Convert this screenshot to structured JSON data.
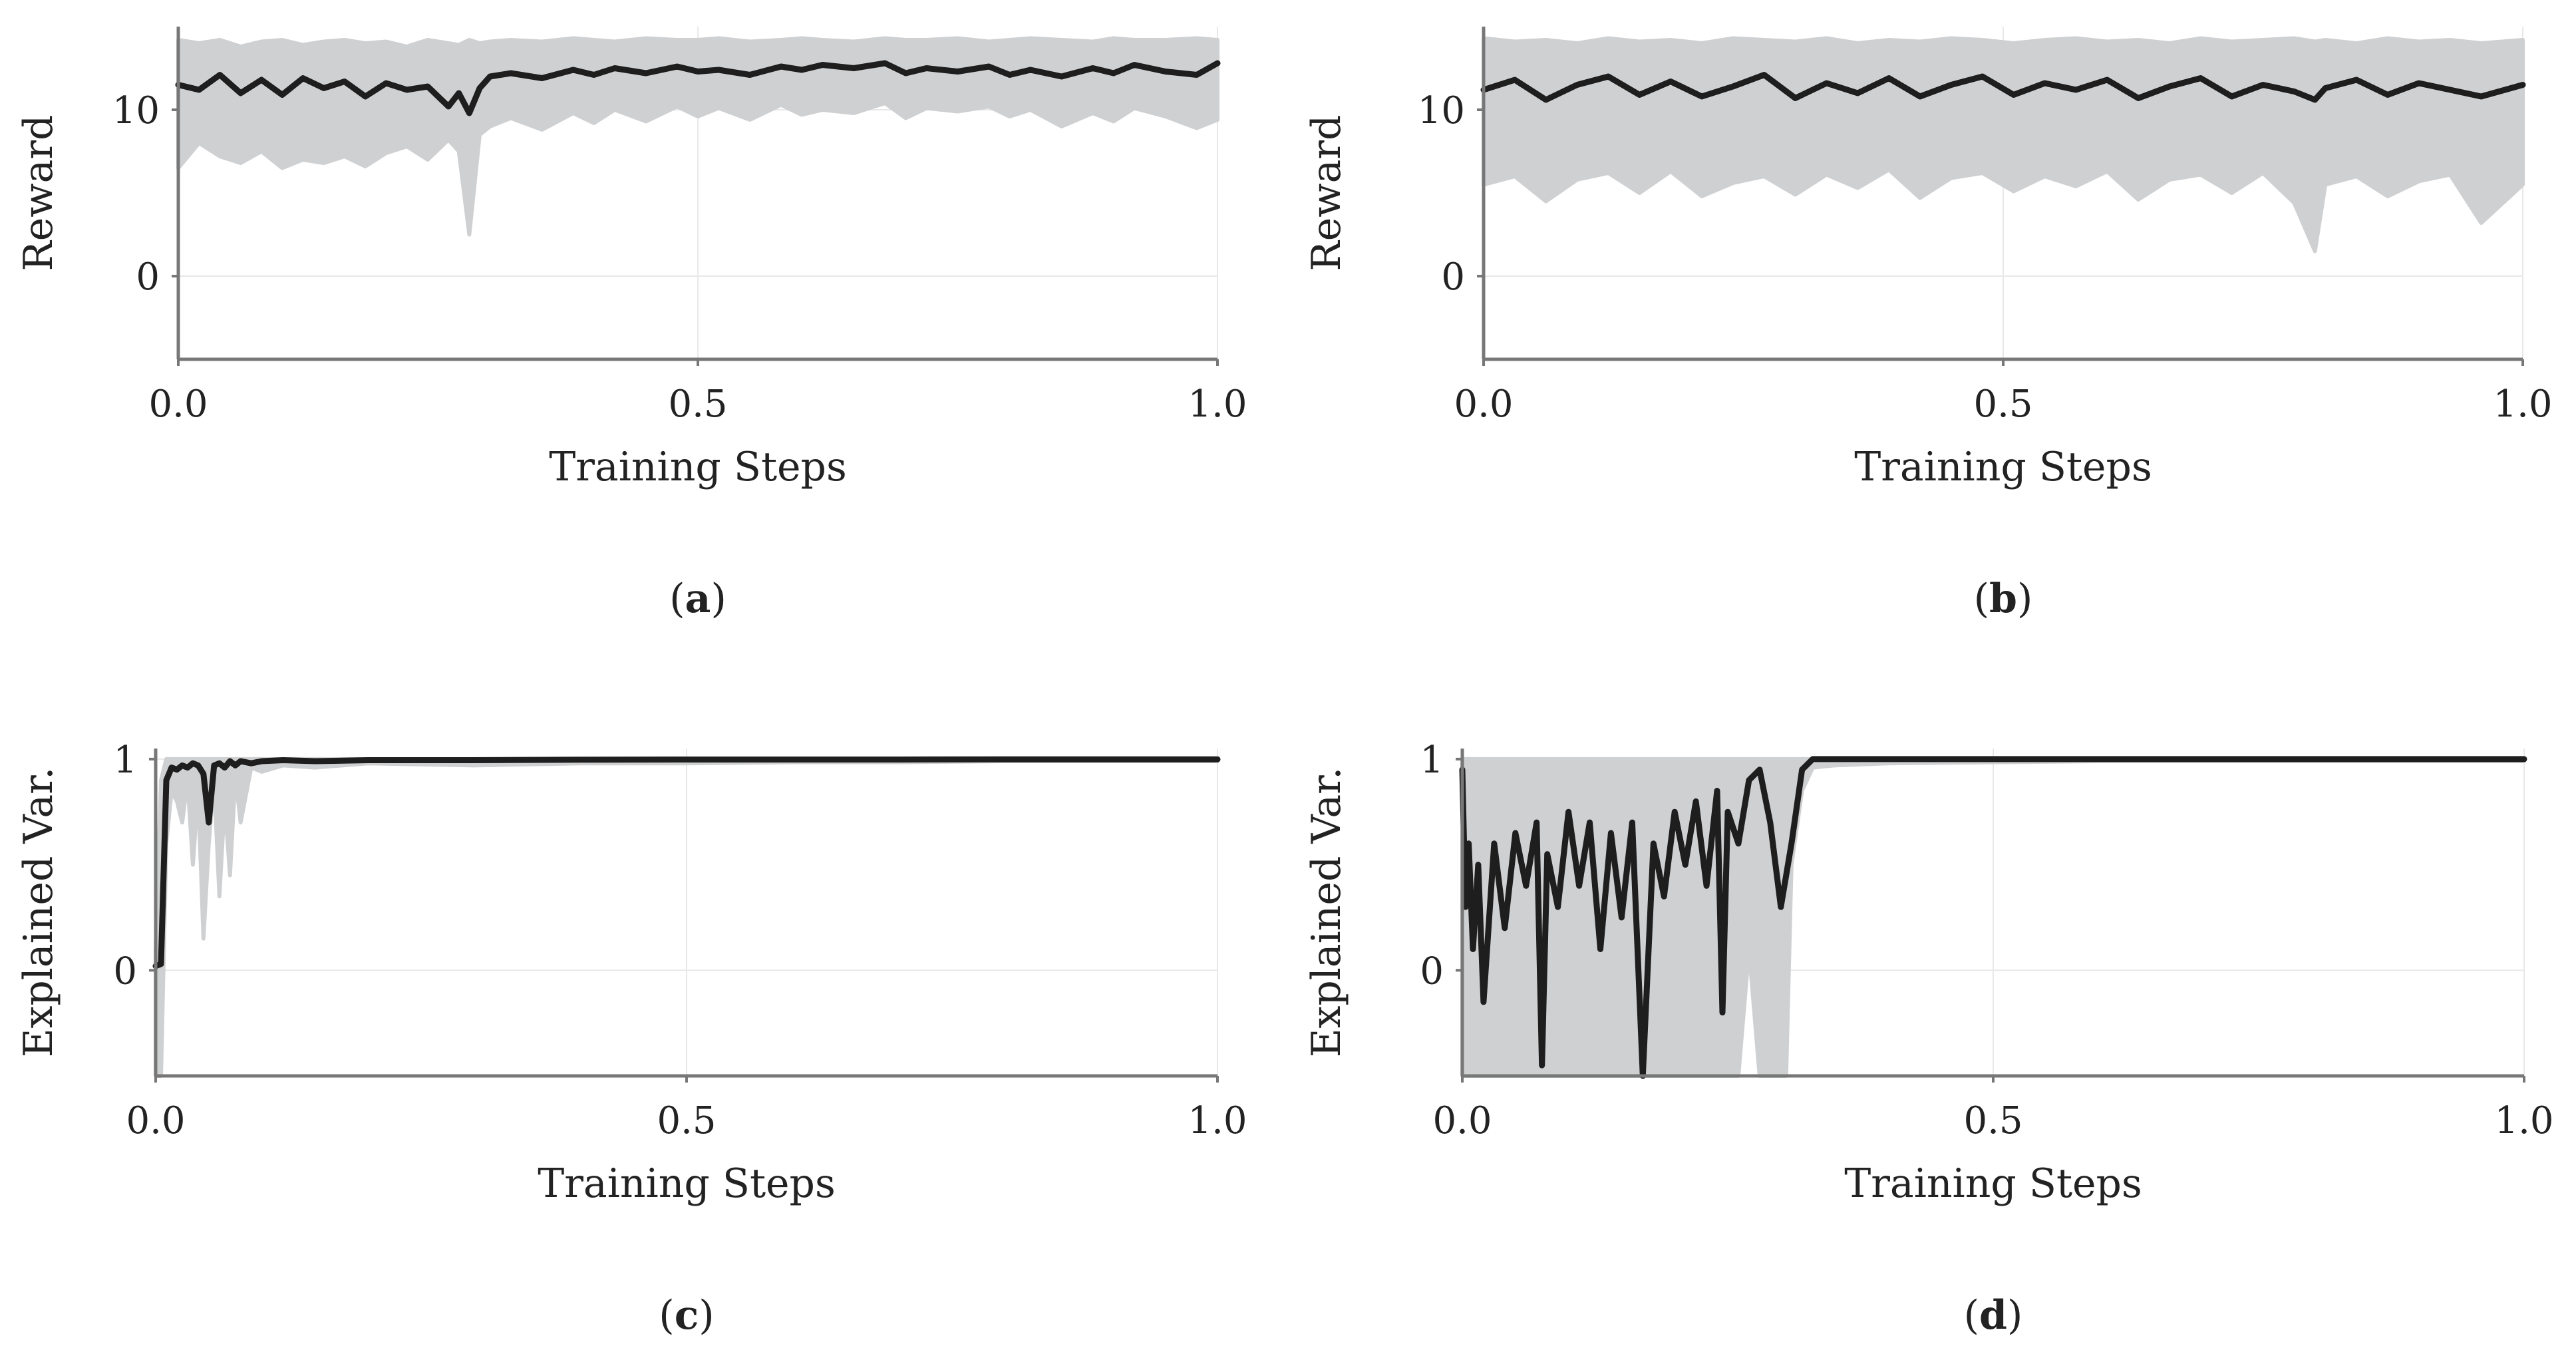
{
  "chart_data": [
    {
      "id": "a",
      "type": "line",
      "caption": "a",
      "xlabel": "Training Steps",
      "ylabel": "Reward",
      "xlim": [
        0,
        1
      ],
      "ylim": [
        -5,
        15
      ],
      "xticks": [
        0.0,
        0.5,
        1.0
      ],
      "xtick_labels": [
        "0.0",
        "0.5",
        "1.0"
      ],
      "yticks": [
        0,
        10
      ],
      "ytick_labels": [
        "0",
        "10"
      ],
      "grid": true,
      "legend": "none",
      "colors": {
        "mean": "#1e1e1e",
        "band": "#cfd0d2"
      },
      "series": [
        {
          "role": "band",
          "x": [
            0.0,
            0.02,
            0.04,
            0.06,
            0.08,
            0.1,
            0.12,
            0.14,
            0.16,
            0.18,
            0.2,
            0.22,
            0.24,
            0.26,
            0.27,
            0.28,
            0.29,
            0.3,
            0.32,
            0.35,
            0.38,
            0.4,
            0.42,
            0.45,
            0.48,
            0.5,
            0.52,
            0.55,
            0.58,
            0.6,
            0.62,
            0.65,
            0.68,
            0.7,
            0.72,
            0.75,
            0.78,
            0.8,
            0.82,
            0.85,
            0.88,
            0.9,
            0.92,
            0.95,
            0.98,
            1.0
          ],
          "upper": [
            14.2,
            14.0,
            14.2,
            13.8,
            14.1,
            14.2,
            13.9,
            14.1,
            14.2,
            14.0,
            14.1,
            13.8,
            14.2,
            14.0,
            13.9,
            14.2,
            14.0,
            14.1,
            14.2,
            14.1,
            14.3,
            14.2,
            14.1,
            14.3,
            14.2,
            14.2,
            14.3,
            14.1,
            14.2,
            14.3,
            14.2,
            14.1,
            14.3,
            14.2,
            14.2,
            14.3,
            14.1,
            14.2,
            14.3,
            14.2,
            14.1,
            14.3,
            14.2,
            14.2,
            14.3,
            14.2
          ],
          "lower": [
            6.5,
            8.0,
            7.2,
            6.8,
            7.5,
            6.5,
            7.0,
            6.8,
            7.2,
            6.6,
            7.4,
            7.8,
            7.0,
            8.2,
            7.5,
            2.5,
            8.5,
            9.0,
            9.5,
            8.8,
            9.8,
            9.2,
            10.0,
            9.3,
            10.2,
            9.6,
            10.1,
            9.4,
            10.3,
            9.7,
            10.0,
            9.8,
            10.4,
            9.5,
            10.1,
            9.9,
            10.2,
            9.6,
            10.0,
            9.0,
            9.8,
            9.3,
            10.1,
            9.6,
            8.9,
            9.4
          ]
        },
        {
          "role": "mean",
          "x": [
            0.0,
            0.02,
            0.04,
            0.06,
            0.08,
            0.1,
            0.12,
            0.14,
            0.16,
            0.18,
            0.2,
            0.22,
            0.24,
            0.26,
            0.27,
            0.28,
            0.29,
            0.3,
            0.32,
            0.35,
            0.38,
            0.4,
            0.42,
            0.45,
            0.48,
            0.5,
            0.52,
            0.55,
            0.58,
            0.6,
            0.62,
            0.65,
            0.68,
            0.7,
            0.72,
            0.75,
            0.78,
            0.8,
            0.82,
            0.85,
            0.88,
            0.9,
            0.92,
            0.95,
            0.98,
            1.0
          ],
          "values": [
            11.5,
            11.2,
            12.1,
            11.0,
            11.8,
            10.9,
            11.9,
            11.3,
            11.7,
            10.8,
            11.6,
            11.2,
            11.4,
            10.2,
            11.0,
            9.8,
            11.3,
            12.0,
            12.2,
            11.9,
            12.4,
            12.1,
            12.5,
            12.2,
            12.6,
            12.3,
            12.4,
            12.1,
            12.6,
            12.4,
            12.7,
            12.5,
            12.8,
            12.2,
            12.5,
            12.3,
            12.6,
            12.1,
            12.4,
            12.0,
            12.5,
            12.2,
            12.7,
            12.3,
            12.1,
            12.8
          ]
        }
      ]
    },
    {
      "id": "b",
      "type": "line",
      "caption": "b",
      "xlabel": "Training Steps",
      "ylabel": "Reward",
      "xlim": [
        0,
        1
      ],
      "ylim": [
        -5,
        15
      ],
      "xticks": [
        0.0,
        0.5,
        1.0
      ],
      "xtick_labels": [
        "0.0",
        "0.5",
        "1.0"
      ],
      "yticks": [
        0,
        10
      ],
      "ytick_labels": [
        "0",
        "10"
      ],
      "grid": true,
      "legend": "none",
      "colors": {
        "mean": "#1e1e1e",
        "band": "#cfd0d2"
      },
      "series": [
        {
          "role": "band",
          "x": [
            0.0,
            0.03,
            0.06,
            0.09,
            0.12,
            0.15,
            0.18,
            0.21,
            0.24,
            0.27,
            0.3,
            0.33,
            0.36,
            0.39,
            0.42,
            0.45,
            0.48,
            0.51,
            0.54,
            0.57,
            0.6,
            0.63,
            0.66,
            0.69,
            0.72,
            0.75,
            0.78,
            0.8,
            0.81,
            0.84,
            0.87,
            0.9,
            0.93,
            0.96,
            1.0
          ],
          "upper": [
            14.3,
            14.1,
            14.2,
            14.0,
            14.3,
            14.1,
            14.2,
            14.0,
            14.3,
            14.2,
            14.1,
            14.3,
            14.0,
            14.2,
            14.1,
            14.3,
            14.2,
            14.0,
            14.2,
            14.3,
            14.1,
            14.2,
            14.0,
            14.3,
            14.1,
            14.2,
            14.3,
            14.1,
            14.2,
            14.0,
            14.3,
            14.1,
            14.2,
            14.0,
            14.2
          ],
          "lower": [
            5.5,
            6.0,
            4.5,
            5.8,
            6.2,
            5.0,
            6.3,
            4.8,
            5.6,
            6.0,
            4.9,
            6.1,
            5.3,
            6.4,
            4.7,
            5.9,
            6.2,
            5.1,
            6.0,
            5.4,
            6.3,
            4.6,
            5.8,
            6.1,
            5.0,
            6.2,
            4.4,
            1.5,
            5.5,
            6.0,
            4.8,
            5.7,
            6.1,
            3.2,
            5.5
          ]
        },
        {
          "role": "mean",
          "x": [
            0.0,
            0.03,
            0.06,
            0.09,
            0.12,
            0.15,
            0.18,
            0.21,
            0.24,
            0.27,
            0.3,
            0.33,
            0.36,
            0.39,
            0.42,
            0.45,
            0.48,
            0.51,
            0.54,
            0.57,
            0.6,
            0.63,
            0.66,
            0.69,
            0.72,
            0.75,
            0.78,
            0.8,
            0.81,
            0.84,
            0.87,
            0.9,
            0.93,
            0.96,
            1.0
          ],
          "values": [
            11.2,
            11.8,
            10.6,
            11.5,
            12.0,
            10.9,
            11.7,
            10.8,
            11.4,
            12.1,
            10.7,
            11.6,
            11.0,
            11.9,
            10.8,
            11.5,
            12.0,
            10.9,
            11.6,
            11.2,
            11.8,
            10.7,
            11.4,
            11.9,
            10.8,
            11.5,
            11.1,
            10.6,
            11.3,
            11.8,
            10.9,
            11.6,
            11.2,
            10.8,
            11.5
          ]
        }
      ]
    },
    {
      "id": "c",
      "type": "line",
      "caption": "c",
      "xlabel": "Training Steps",
      "ylabel": "Explained Var.",
      "xlim": [
        0,
        1
      ],
      "ylim": [
        -0.5,
        1.05
      ],
      "xticks": [
        0.0,
        0.5,
        1.0
      ],
      "xtick_labels": [
        "0.0",
        "0.5",
        "1.0"
      ],
      "yticks": [
        0,
        1
      ],
      "ytick_labels": [
        "0",
        "1"
      ],
      "grid": true,
      "legend": "none",
      "colors": {
        "mean": "#1e1e1e",
        "band": "#cfd0d2"
      },
      "series": [
        {
          "role": "band",
          "x": [
            0.0,
            0.005,
            0.01,
            0.015,
            0.02,
            0.025,
            0.03,
            0.035,
            0.04,
            0.045,
            0.05,
            0.055,
            0.06,
            0.065,
            0.07,
            0.075,
            0.08,
            0.09,
            0.1,
            0.12,
            0.15,
            0.2,
            0.3,
            0.4,
            0.5,
            0.6,
            0.7,
            0.8,
            0.9,
            1.0
          ],
          "upper": [
            0.1,
            0.9,
            1.0,
            1.0,
            1.0,
            1.0,
            1.0,
            1.0,
            1.0,
            1.0,
            1.0,
            1.0,
            1.0,
            1.0,
            1.0,
            1.0,
            1.0,
            1.0,
            1.0,
            1.0,
            1.0,
            1.0,
            1.0,
            1.0,
            1.0,
            1.0,
            1.0,
            1.0,
            1.0,
            1.0
          ],
          "lower": [
            -0.5,
            -0.5,
            0.6,
            0.85,
            0.8,
            0.7,
            0.9,
            0.5,
            0.85,
            0.15,
            0.6,
            0.9,
            0.35,
            0.8,
            0.45,
            0.92,
            0.7,
            0.96,
            0.94,
            0.97,
            0.96,
            0.98,
            0.97,
            0.98,
            0.98,
            0.985,
            0.985,
            0.99,
            0.99,
            0.99
          ]
        },
        {
          "role": "mean",
          "x": [
            0.0,
            0.005,
            0.01,
            0.015,
            0.02,
            0.025,
            0.03,
            0.035,
            0.04,
            0.045,
            0.05,
            0.055,
            0.06,
            0.065,
            0.07,
            0.075,
            0.08,
            0.09,
            0.1,
            0.12,
            0.15,
            0.2,
            0.3,
            0.4,
            0.5,
            0.6,
            0.7,
            0.8,
            0.9,
            1.0
          ],
          "values": [
            0.02,
            0.03,
            0.9,
            0.96,
            0.95,
            0.97,
            0.96,
            0.98,
            0.97,
            0.93,
            0.7,
            0.97,
            0.98,
            0.96,
            0.99,
            0.97,
            0.99,
            0.98,
            0.99,
            0.995,
            0.99,
            0.995,
            0.995,
            0.997,
            0.998,
            0.998,
            0.998,
            0.999,
            0.999,
            0.999
          ]
        }
      ]
    },
    {
      "id": "d",
      "type": "line",
      "caption": "d",
      "xlabel": "Training Steps",
      "ylabel": "Explained Var.",
      "xlim": [
        0,
        1
      ],
      "ylim": [
        -0.5,
        1.05
      ],
      "xticks": [
        0.0,
        0.5,
        1.0
      ],
      "xtick_labels": [
        "0.0",
        "0.5",
        "1.0"
      ],
      "yticks": [
        0,
        1
      ],
      "ytick_labels": [
        "0",
        "1"
      ],
      "grid": true,
      "legend": "none",
      "colors": {
        "mean": "#1e1e1e",
        "band": "#cfd0d2"
      },
      "series": [
        {
          "role": "band",
          "x": [
            0.0,
            0.005,
            0.01,
            0.02,
            0.04,
            0.06,
            0.08,
            0.1,
            0.12,
            0.14,
            0.16,
            0.18,
            0.2,
            0.22,
            0.24,
            0.25,
            0.26,
            0.27,
            0.28,
            0.29,
            0.3,
            0.305,
            0.31,
            0.32,
            0.33,
            0.35,
            0.4,
            0.5,
            0.6,
            0.7,
            0.8,
            0.9,
            1.0
          ],
          "upper": [
            1.0,
            1.0,
            1.0,
            1.0,
            1.0,
            1.0,
            1.0,
            1.0,
            1.0,
            1.0,
            1.0,
            1.0,
            1.0,
            1.0,
            1.0,
            1.0,
            1.0,
            1.0,
            1.0,
            1.0,
            1.0,
            1.0,
            1.0,
            1.0,
            1.0,
            1.0,
            1.0,
            1.0,
            1.0,
            1.0,
            1.0,
            1.0,
            1.0
          ],
          "lower": [
            -0.5,
            -0.5,
            -0.5,
            -0.5,
            -0.5,
            -0.5,
            -0.5,
            -0.5,
            -0.5,
            -0.5,
            -0.5,
            -0.5,
            -0.5,
            -0.5,
            -0.5,
            -0.5,
            -0.5,
            0.1,
            -0.5,
            -0.5,
            -0.5,
            -0.5,
            0.5,
            0.85,
            0.96,
            0.97,
            0.98,
            0.985,
            0.99,
            0.99,
            0.99,
            0.99,
            0.99
          ]
        },
        {
          "role": "mean",
          "x": [
            0.0,
            0.003,
            0.006,
            0.01,
            0.015,
            0.02,
            0.03,
            0.04,
            0.05,
            0.06,
            0.07,
            0.075,
            0.08,
            0.09,
            0.1,
            0.11,
            0.12,
            0.13,
            0.14,
            0.15,
            0.16,
            0.17,
            0.18,
            0.19,
            0.2,
            0.21,
            0.22,
            0.23,
            0.24,
            0.245,
            0.25,
            0.26,
            0.27,
            0.28,
            0.29,
            0.3,
            0.31,
            0.32,
            0.33,
            0.35,
            0.4,
            0.5,
            0.6,
            0.7,
            0.8,
            0.9,
            1.0
          ],
          "values": [
            0.95,
            0.3,
            0.6,
            0.1,
            0.5,
            -0.15,
            0.6,
            0.2,
            0.65,
            0.4,
            0.7,
            -0.45,
            0.55,
            0.3,
            0.75,
            0.4,
            0.7,
            0.1,
            0.65,
            0.25,
            0.7,
            -0.5,
            0.6,
            0.35,
            0.75,
            0.5,
            0.8,
            0.4,
            0.85,
            -0.2,
            0.75,
            0.6,
            0.9,
            0.95,
            0.7,
            0.3,
            0.6,
            0.95,
            1.0,
            1.0,
            1.0,
            1.0,
            1.0,
            1.0,
            1.0,
            1.0,
            1.0
          ]
        }
      ]
    }
  ]
}
